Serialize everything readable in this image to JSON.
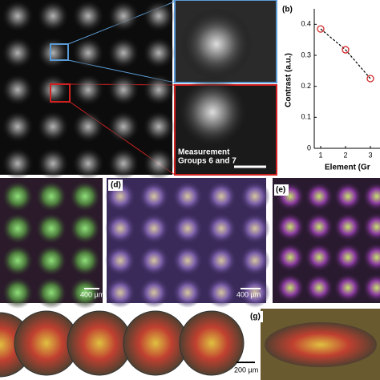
{
  "panels": {
    "b_label": "(b)",
    "d_label": "(d)",
    "e_label": "(e)",
    "g_label": "(g)",
    "measurement_text": [
      "Measurement",
      "Groups 6 and 7"
    ],
    "scale_bars": [
      "400 µm",
      "400 µm",
      "200 µm"
    ]
  },
  "chart_data": {
    "type": "line",
    "x": [
      1,
      2,
      3
    ],
    "values": [
      0.385,
      0.318,
      0.225
    ],
    "xlabel": "Element (Gr",
    "ylabel": "Contrast (a.u.)",
    "xlim": [
      0.75,
      3.5
    ],
    "ylim": [
      0,
      0.45
    ],
    "xticks": [
      1,
      2,
      3
    ],
    "yticks": [
      0,
      0.1,
      0.2,
      0.3,
      0.4
    ],
    "color": "#d62728",
    "line_color": "#000000",
    "line_style": "dashed"
  }
}
